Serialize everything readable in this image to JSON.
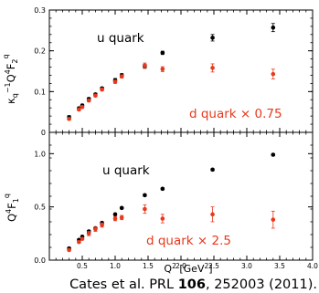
{
  "citation": {
    "prefix": "Cates et al.  PRL ",
    "volume": "106",
    "suffix": ", 252003 (2011)."
  },
  "colors": {
    "u_quark": "#000000",
    "d_quark": "#e8391c",
    "axis": "#000000"
  },
  "chart_data": [
    {
      "type": "scatter",
      "panel": "top",
      "ylabel": "κ_q⁻¹Q⁴F₂^q",
      "xlim": [
        0,
        4.0
      ],
      "ylim": [
        0,
        0.3
      ],
      "yticks": [
        "0",
        "0.1",
        "0.2",
        "0.3"
      ],
      "grid": false,
      "annotations": [
        "u quark",
        "d quark × 0.75"
      ],
      "series": [
        {
          "name": "u quark",
          "x": [
            0.3,
            0.45,
            0.5,
            0.6,
            0.7,
            0.8,
            1.0,
            1.1,
            1.45,
            1.72,
            2.48,
            3.4
          ],
          "y": [
            0.037,
            0.059,
            0.066,
            0.082,
            0.093,
            0.108,
            0.128,
            0.14,
            0.162,
            0.195,
            0.232,
            0.257
          ],
          "err": [
            0.004,
            0.003,
            0.003,
            0.003,
            0.003,
            0.003,
            0.004,
            0.004,
            0.005,
            0.004,
            0.008,
            0.01
          ]
        },
        {
          "name": "d quark × 0.75",
          "x": [
            0.3,
            0.45,
            0.5,
            0.6,
            0.7,
            0.8,
            1.0,
            1.1,
            1.45,
            1.72,
            2.48,
            3.4
          ],
          "y": [
            0.033,
            0.056,
            0.062,
            0.078,
            0.09,
            0.105,
            0.124,
            0.137,
            0.164,
            0.155,
            0.158,
            0.143
          ],
          "err": [
            0.003,
            0.003,
            0.003,
            0.003,
            0.003,
            0.003,
            0.004,
            0.004,
            0.006,
            0.006,
            0.01,
            0.012
          ]
        }
      ]
    },
    {
      "type": "scatter",
      "panel": "bottom",
      "ylabel": "Q⁴F₁^q",
      "xlabel": "Q² [GeV²]",
      "xlim": [
        0,
        4.0
      ],
      "ylim": [
        0,
        1.2
      ],
      "xticks": [
        "0.5",
        "1.0",
        "1.5",
        "2.0",
        "2.5",
        "3.0",
        "3.5",
        "4.0"
      ],
      "yticks": [
        "0.0",
        "0.5",
        "1.0"
      ],
      "grid": false,
      "annotations": [
        "u quark",
        "d quark × 2.5"
      ],
      "series": [
        {
          "name": "u quark",
          "x": [
            0.3,
            0.45,
            0.5,
            0.6,
            0.7,
            0.8,
            1.0,
            1.1,
            1.45,
            1.72,
            2.48,
            3.4
          ],
          "y": [
            0.11,
            0.19,
            0.22,
            0.27,
            0.3,
            0.35,
            0.43,
            0.49,
            0.61,
            0.67,
            0.85,
            0.99
          ],
          "err": [
            0.01,
            0.01,
            0.01,
            0.01,
            0.01,
            0.01,
            0.01,
            0.01,
            0.01,
            0.01,
            0.01,
            0.01
          ]
        },
        {
          "name": "d quark × 2.5",
          "x": [
            0.3,
            0.45,
            0.5,
            0.6,
            0.7,
            0.8,
            1.0,
            1.1,
            1.45,
            1.72,
            2.48,
            3.4
          ],
          "y": [
            0.095,
            0.17,
            0.2,
            0.25,
            0.29,
            0.33,
            0.39,
            0.4,
            0.48,
            0.39,
            0.43,
            0.38
          ],
          "err": [
            0.01,
            0.01,
            0.01,
            0.02,
            0.02,
            0.02,
            0.02,
            0.02,
            0.04,
            0.04,
            0.07,
            0.08
          ]
        }
      ]
    }
  ]
}
